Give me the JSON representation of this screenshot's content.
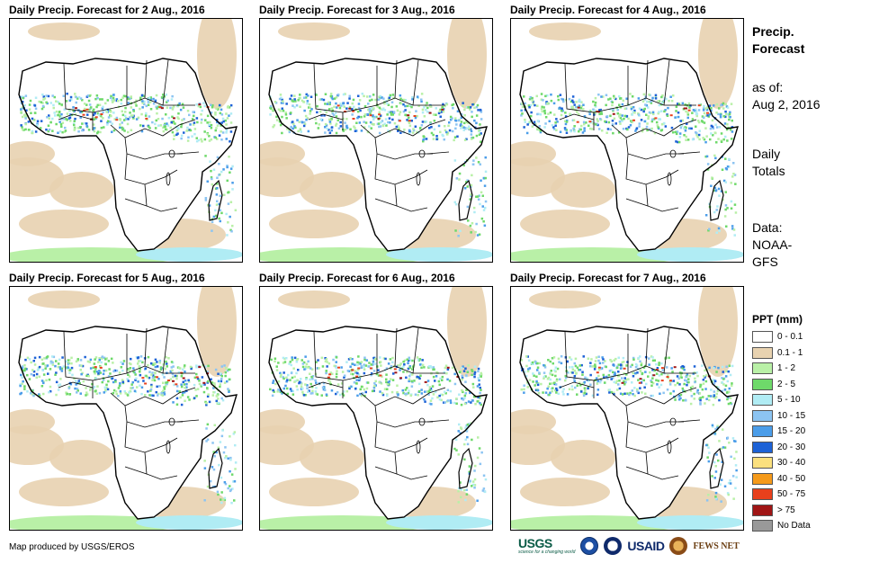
{
  "panels": [
    {
      "title": "Daily Precip. Forecast for 2 Aug., 2016"
    },
    {
      "title": "Daily Precip. Forecast for 3 Aug., 2016"
    },
    {
      "title": "Daily Precip. Forecast for 4 Aug., 2016"
    },
    {
      "title": "Daily Precip. Forecast for 5 Aug., 2016"
    },
    {
      "title": "Daily Precip. Forecast for 6 Aug., 2016"
    },
    {
      "title": "Daily Precip. Forecast for 7 Aug., 2016"
    }
  ],
  "sidebar": {
    "title_line1": "Precip.",
    "title_line2": "Forecast",
    "asof_label": "as of:",
    "asof_date": "Aug 2, 2016",
    "totals_line1": "Daily",
    "totals_line2": "Totals",
    "data_label": "Data:",
    "data_source_line1": "NOAA-",
    "data_source_line2": "GFS"
  },
  "legend": {
    "title": "PPT (mm)",
    "items": [
      {
        "label": "0 - 0.1",
        "color": "#ffffff"
      },
      {
        "label": "0.1 - 1",
        "color": "#e8d2b0"
      },
      {
        "label": "1 - 2",
        "color": "#b9f0a7"
      },
      {
        "label": "2 - 5",
        "color": "#6ed96a"
      },
      {
        "label": "5 - 10",
        "color": "#b0ecf4"
      },
      {
        "label": "10 - 15",
        "color": "#8cc4f2"
      },
      {
        "label": "15 - 20",
        "color": "#4b9de9"
      },
      {
        "label": "20 - 30",
        "color": "#1d62d6"
      },
      {
        "label": "30 - 40",
        "color": "#fbe07e"
      },
      {
        "label": "40 - 50",
        "color": "#f59a1a"
      },
      {
        "label": "50 - 75",
        "color": "#e8401c"
      },
      {
        "label": "> 75",
        "color": "#a01515"
      },
      {
        "label": "No Data",
        "color": "#999999"
      }
    ]
  },
  "footer": {
    "credit": "Map produced by USGS/EROS"
  },
  "logos": {
    "usgs": "USGS",
    "usgs_tagline": "science for a changing world",
    "usaid": "USAID",
    "fewsnet": "FEWS NET"
  }
}
